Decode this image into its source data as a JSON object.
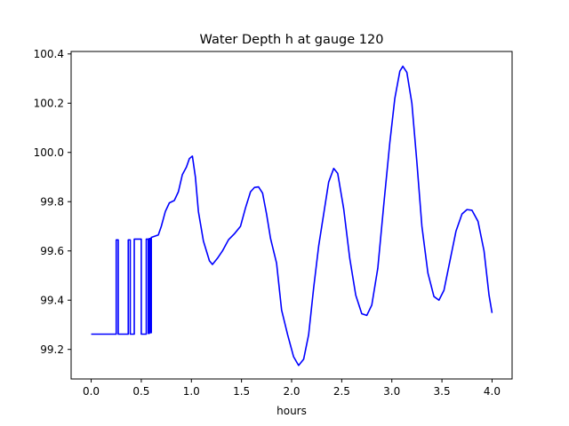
{
  "chart_data": {
    "type": "line",
    "title": "Water Depth h at gauge 120",
    "xlabel": "hours",
    "ylabel": "",
    "xlim": [
      -0.2,
      4.2
    ],
    "ylim": [
      99.08,
      100.41
    ],
    "xticks": [
      0.0,
      0.5,
      1.0,
      1.5,
      2.0,
      2.5,
      3.0,
      3.5,
      4.0
    ],
    "xtick_labels": [
      "0.0",
      "0.5",
      "1.0",
      "1.5",
      "2.0",
      "2.5",
      "3.0",
      "3.5",
      "4.0"
    ],
    "yticks": [
      99.2,
      99.4,
      99.6,
      99.8,
      100.0,
      100.2,
      100.4
    ],
    "ytick_labels": [
      "99.2",
      "99.4",
      "99.6",
      "99.8",
      "100.0",
      "100.2",
      "100.4"
    ],
    "grid": false,
    "legend": "none",
    "series": [
      {
        "color": "#0000ff",
        "points": [
          [
            0.0,
            99.262
          ],
          [
            0.25,
            99.262
          ],
          [
            0.25,
            99.645
          ],
          [
            0.27,
            99.645
          ],
          [
            0.27,
            99.262
          ],
          [
            0.37,
            99.262
          ],
          [
            0.37,
            99.645
          ],
          [
            0.39,
            99.645
          ],
          [
            0.39,
            99.262
          ],
          [
            0.43,
            99.262
          ],
          [
            0.43,
            99.648
          ],
          [
            0.5,
            99.648
          ],
          [
            0.5,
            99.262
          ],
          [
            0.55,
            99.262
          ],
          [
            0.55,
            99.648
          ],
          [
            0.57,
            99.648
          ],
          [
            0.57,
            99.265
          ],
          [
            0.58,
            99.265
          ],
          [
            0.58,
            99.65
          ],
          [
            0.59,
            99.65
          ],
          [
            0.59,
            99.268
          ],
          [
            0.6,
            99.268
          ],
          [
            0.6,
            99.655
          ],
          [
            0.67,
            99.665
          ],
          [
            0.7,
            99.7
          ],
          [
            0.74,
            99.76
          ],
          [
            0.78,
            99.795
          ],
          [
            0.83,
            99.805
          ],
          [
            0.87,
            99.84
          ],
          [
            0.91,
            99.91
          ],
          [
            0.95,
            99.94
          ],
          [
            0.98,
            99.975
          ],
          [
            1.01,
            99.985
          ],
          [
            1.04,
            99.9
          ],
          [
            1.07,
            99.76
          ],
          [
            1.12,
            99.64
          ],
          [
            1.18,
            99.56
          ],
          [
            1.21,
            99.545
          ],
          [
            1.26,
            99.57
          ],
          [
            1.31,
            99.6
          ],
          [
            1.37,
            99.645
          ],
          [
            1.43,
            99.67
          ],
          [
            1.49,
            99.7
          ],
          [
            1.54,
            99.775
          ],
          [
            1.59,
            99.84
          ],
          [
            1.63,
            99.858
          ],
          [
            1.67,
            99.86
          ],
          [
            1.71,
            99.835
          ],
          [
            1.75,
            99.75
          ],
          [
            1.79,
            99.65
          ],
          [
            1.85,
            99.55
          ],
          [
            1.9,
            99.36
          ],
          [
            1.96,
            99.26
          ],
          [
            2.02,
            99.17
          ],
          [
            2.07,
            99.135
          ],
          [
            2.12,
            99.16
          ],
          [
            2.17,
            99.26
          ],
          [
            2.22,
            99.45
          ],
          [
            2.27,
            99.62
          ],
          [
            2.32,
            99.75
          ],
          [
            2.37,
            99.88
          ],
          [
            2.42,
            99.935
          ],
          [
            2.46,
            99.915
          ],
          [
            2.52,
            99.77
          ],
          [
            2.58,
            99.57
          ],
          [
            2.64,
            99.42
          ],
          [
            2.7,
            99.345
          ],
          [
            2.75,
            99.338
          ],
          [
            2.8,
            99.38
          ],
          [
            2.86,
            99.53
          ],
          [
            2.92,
            99.79
          ],
          [
            2.98,
            100.04
          ],
          [
            3.03,
            100.22
          ],
          [
            3.08,
            100.33
          ],
          [
            3.11,
            100.35
          ],
          [
            3.15,
            100.325
          ],
          [
            3.2,
            100.2
          ],
          [
            3.25,
            99.96
          ],
          [
            3.3,
            99.7
          ],
          [
            3.36,
            99.51
          ],
          [
            3.42,
            99.415
          ],
          [
            3.47,
            99.4
          ],
          [
            3.52,
            99.44
          ],
          [
            3.58,
            99.56
          ],
          [
            3.64,
            99.68
          ],
          [
            3.7,
            99.75
          ],
          [
            3.75,
            99.768
          ],
          [
            3.8,
            99.765
          ],
          [
            3.86,
            99.72
          ],
          [
            3.92,
            99.6
          ],
          [
            3.97,
            99.42
          ],
          [
            4.0,
            99.348
          ]
        ]
      }
    ]
  }
}
